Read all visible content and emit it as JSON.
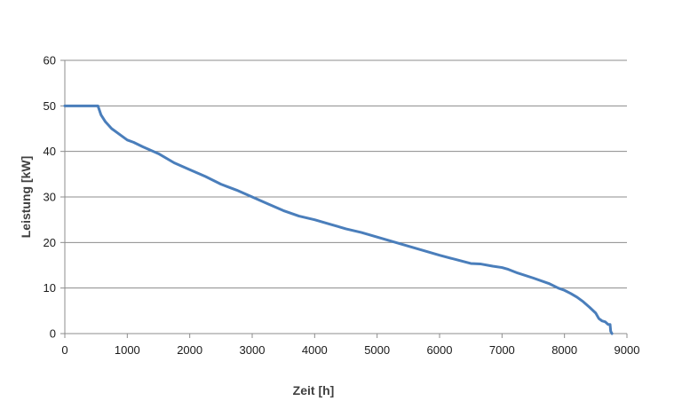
{
  "chart_data": {
    "type": "line",
    "title": "",
    "xlabel": "Zeit [h]",
    "ylabel": "Leistung [kW]",
    "xlim": [
      0,
      9000
    ],
    "ylim": [
      0,
      60
    ],
    "x_ticks": [
      0,
      1000,
      2000,
      3000,
      4000,
      5000,
      6000,
      7000,
      8000,
      9000
    ],
    "y_ticks": [
      0,
      10,
      20,
      30,
      40,
      50,
      60
    ],
    "grid": "horizontal",
    "legend": "none",
    "series": [
      {
        "color": "#4a7ebb",
        "x": [
          0,
          530,
          580,
          650,
          750,
          900,
          1000,
          1100,
          1250,
          1500,
          1750,
          2000,
          2250,
          2500,
          2750,
          3000,
          3250,
          3500,
          3750,
          4000,
          4250,
          4500,
          4750,
          5000,
          5250,
          5500,
          5750,
          6000,
          6250,
          6500,
          6650,
          6850,
          7000,
          7100,
          7250,
          7500,
          7750,
          7900,
          8000,
          8100,
          8200,
          8300,
          8400,
          8500,
          8550,
          8600,
          8650,
          8700,
          8730,
          8740,
          8760
        ],
        "values": [
          50,
          50,
          48,
          46.5,
          45,
          43.5,
          42.5,
          42,
          41,
          39.5,
          37.5,
          36,
          34.5,
          32.8,
          31.5,
          30,
          28.5,
          27,
          25.8,
          25,
          24,
          23,
          22.2,
          21.2,
          20.2,
          19.2,
          18.2,
          17.2,
          16.3,
          15.4,
          15.3,
          14.8,
          14.5,
          14.1,
          13.3,
          12.2,
          11,
          10,
          9.5,
          8.8,
          8,
          7,
          5.8,
          4.5,
          3.3,
          2.8,
          2.6,
          2,
          2,
          0.5,
          0
        ]
      }
    ]
  }
}
